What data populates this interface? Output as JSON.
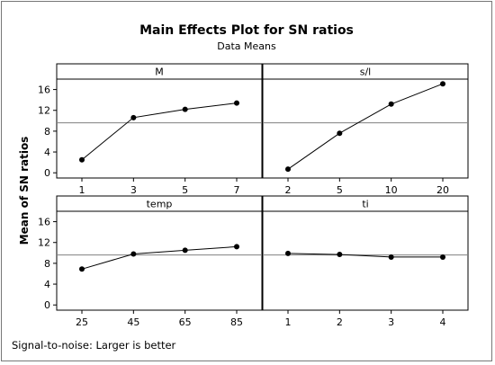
{
  "title": "Main Effects Plot for SN ratios",
  "subtitle": "Data Means",
  "ylabel": "Mean of SN ratios",
  "footnote": "Signal-to-noise: Larger is better",
  "chart_data": {
    "type": "line",
    "title": "Main Effects Plot for SN ratios",
    "subtitle": "Data Means",
    "ylabel": "Mean of SN ratios",
    "ylim": [
      -1,
      18
    ],
    "yticks": [
      0,
      4,
      8,
      12,
      16
    ],
    "overall_mean": 9.6,
    "grid": false,
    "panels": [
      {
        "factor": "M",
        "categories": [
          "1",
          "3",
          "5",
          "7"
        ],
        "values": [
          2.5,
          10.6,
          12.2,
          13.4
        ]
      },
      {
        "factor": "s/l",
        "categories": [
          "2",
          "5",
          "10",
          "20"
        ],
        "values": [
          0.7,
          7.6,
          13.2,
          17.1
        ]
      },
      {
        "factor": "temp",
        "categories": [
          "25",
          "45",
          "65",
          "85"
        ],
        "values": [
          6.9,
          9.8,
          10.5,
          11.2
        ]
      },
      {
        "factor": "ti",
        "categories": [
          "1",
          "2",
          "3",
          "4"
        ],
        "values": [
          9.9,
          9.7,
          9.2,
          9.2
        ]
      }
    ]
  }
}
